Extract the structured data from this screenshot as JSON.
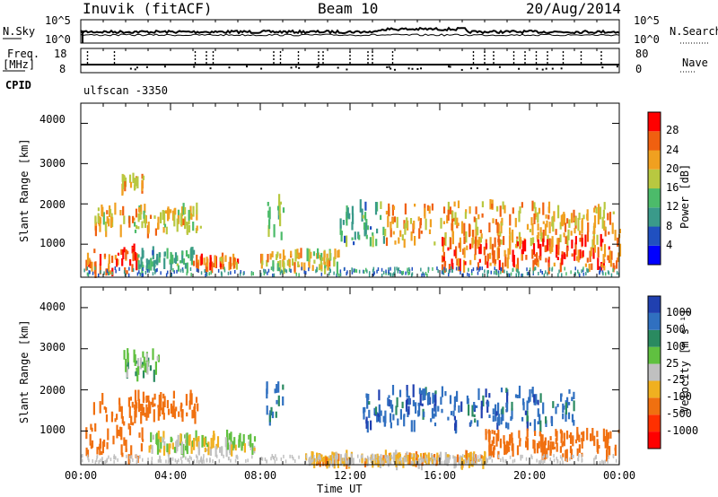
{
  "header": {
    "station": "Inuvik (fitACF)",
    "beam": "Beam 10",
    "date": "20/Aug/2014"
  },
  "summary_panels": {
    "nsky_label": "N.Sky",
    "nsky_ticks": [
      "10^5",
      "10^0"
    ],
    "nsearch_label": "N.Search",
    "nsearch_ticks": [
      "10^5",
      "10^0"
    ],
    "freq_label": "Freq.",
    "freq_unit": "[MHz]",
    "freq_ticks": [
      "18",
      "8"
    ],
    "nave_label": "Nave",
    "nave_ticks": [
      "80",
      "0"
    ],
    "cpid_label": "CPID",
    "cpid_text": "ulfscan -3350"
  },
  "chart_data": [
    {
      "type": "heatmap",
      "title": "",
      "xlabel": "",
      "ylabel": "Slant Range [km]",
      "x_ticks": [
        "00:00",
        "04:00",
        "08:00",
        "12:00",
        "16:00",
        "20:00",
        "00:00"
      ],
      "y_ticks": [
        "1000",
        "2000",
        "3000",
        "4000"
      ],
      "ylim": [
        180,
        4500
      ],
      "colorbar_label": "Power [dB]",
      "colorbar_ticks": [
        "4",
        "8",
        "12",
        "16",
        "20",
        "24",
        "28"
      ],
      "colorbar_colors": [
        "#0000ff",
        "#2050c0",
        "#3a9a8a",
        "#4cbb6a",
        "#b8c840",
        "#f0a020",
        "#f06010",
        "#ff0000"
      ],
      "features": [
        {
          "t_start": 0.2,
          "t_end": 2.5,
          "r_min": 300,
          "r_max": 900,
          "level": 26
        },
        {
          "t_start": 0.6,
          "t_end": 5.4,
          "r_min": 1300,
          "r_max": 1900,
          "level": 20
        },
        {
          "t_start": 1.8,
          "t_end": 2.8,
          "r_min": 2300,
          "r_max": 2700,
          "level": 21
        },
        {
          "t_start": 2.5,
          "t_end": 5.0,
          "r_min": 400,
          "r_max": 800,
          "level": 12
        },
        {
          "t_start": 5.0,
          "t_end": 7.0,
          "r_min": 400,
          "r_max": 650,
          "level": 24
        },
        {
          "t_start": 8.3,
          "t_end": 9.0,
          "r_min": 1200,
          "r_max": 2100,
          "level": 14
        },
        {
          "t_start": 8.0,
          "t_end": 11.5,
          "r_min": 400,
          "r_max": 800,
          "level": 20
        },
        {
          "t_start": 11.5,
          "t_end": 13.5,
          "r_min": 900,
          "r_max": 2000,
          "level": 12
        },
        {
          "t_start": 13.5,
          "t_end": 24.0,
          "r_min": 1000,
          "r_max": 2000,
          "level": 22
        },
        {
          "t_start": 16.0,
          "t_end": 24.0,
          "r_min": 400,
          "r_max": 1100,
          "level": 26
        }
      ]
    },
    {
      "type": "heatmap",
      "title": "",
      "xlabel": "Time UT",
      "ylabel": "Slant Range [km]",
      "x_ticks": [
        "00:00",
        "04:00",
        "08:00",
        "12:00",
        "16:00",
        "20:00",
        "00:00"
      ],
      "y_ticks": [
        "1000",
        "2000",
        "3000",
        "4000"
      ],
      "ylim": [
        180,
        4500
      ],
      "colorbar_label": "Velocity [m s⁻¹]",
      "colorbar_ticks": [
        "1000",
        "500",
        "100",
        "25",
        "-25",
        "-100",
        "-500",
        "-1000"
      ],
      "colorbar_colors": [
        "#2040b0",
        "#3070c0",
        "#2a8a60",
        "#60c040",
        "#c0c0c0",
        "#f0b020",
        "#f07010",
        "#ff3000",
        "#ff0000"
      ],
      "features": [
        {
          "t_start": 0.2,
          "t_end": 3.0,
          "r_min": 300,
          "r_max": 1800,
          "velocity": -300
        },
        {
          "t_start": 2.0,
          "t_end": 5.2,
          "r_min": 1300,
          "r_max": 1900,
          "velocity": -200
        },
        {
          "t_start": 1.8,
          "t_end": 3.5,
          "r_min": 2300,
          "r_max": 2900,
          "velocity": 60
        },
        {
          "t_start": 3.0,
          "t_end": 8.0,
          "r_min": 500,
          "r_max": 900,
          "velocity": 0
        },
        {
          "t_start": 8.2,
          "t_end": 9.0,
          "r_min": 1200,
          "r_max": 2100,
          "velocity": 600
        },
        {
          "t_start": 12.5,
          "t_end": 22.0,
          "r_min": 1100,
          "r_max": 2000,
          "velocity": 800
        },
        {
          "t_start": 18.0,
          "t_end": 24.0,
          "r_min": 400,
          "r_max": 1000,
          "velocity": -200
        },
        {
          "t_start": 10.0,
          "t_end": 18.0,
          "r_min": 200,
          "r_max": 400,
          "velocity": -50
        }
      ]
    }
  ]
}
